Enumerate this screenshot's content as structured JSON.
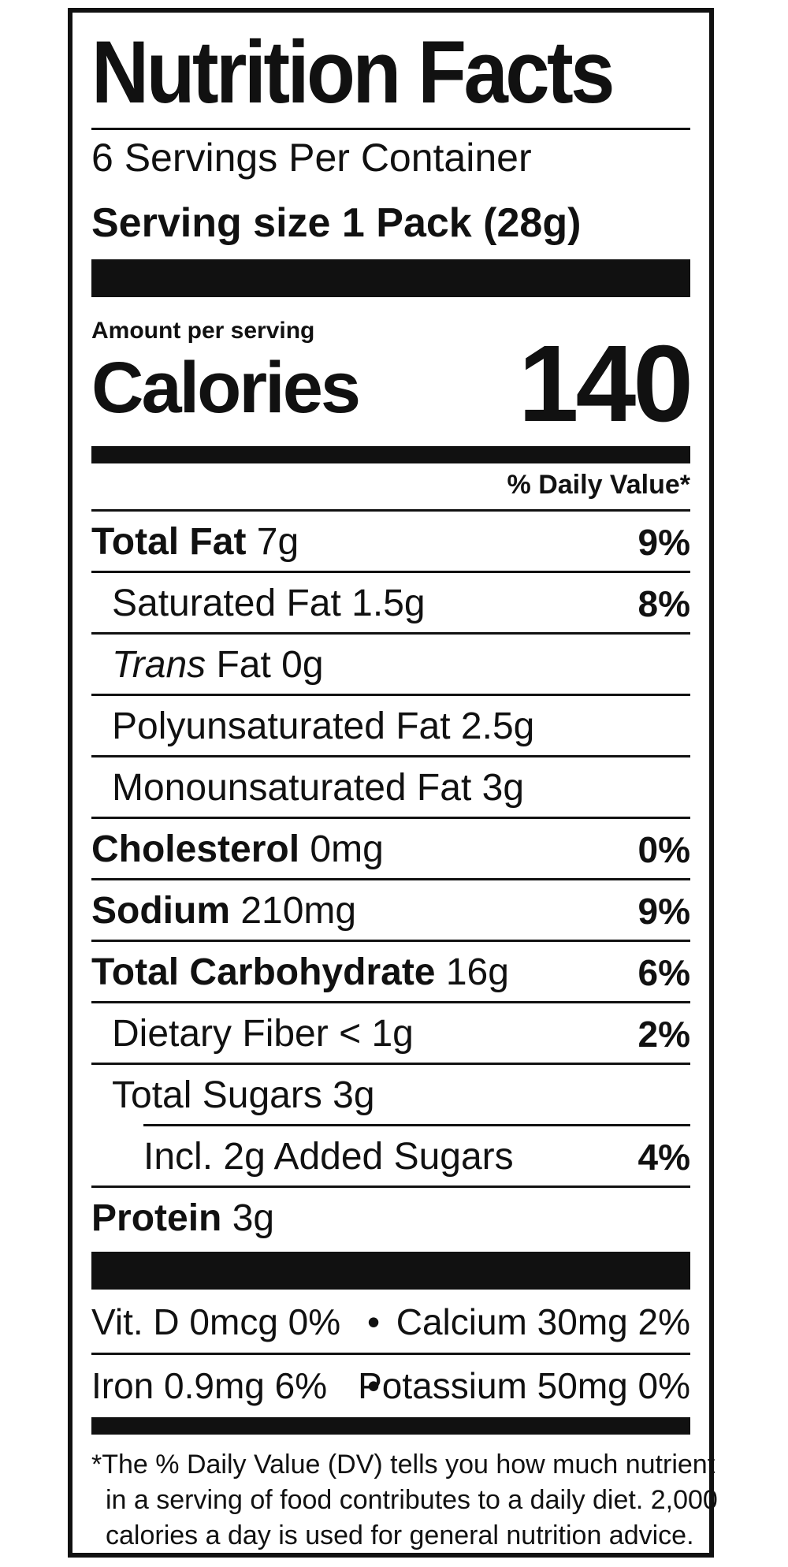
{
  "title": "Nutrition Facts",
  "servings_per_container": "6 Servings Per Container",
  "serving_size": "Serving size 1 Pack (28g)",
  "amount_per_serving": "Amount per serving",
  "calories_label": "Calories",
  "calories_value": "140",
  "daily_value_header": "% Daily Value*",
  "nutrients": [
    {
      "name": "Total Fat",
      "amount": " 7g",
      "dv": "9%"
    },
    {
      "name": "Saturated Fat 1.5g",
      "dv": "8%"
    },
    {
      "name_italic": "Trans",
      "name": " Fat 0g"
    },
    {
      "name": "Polyunsaturated Fat 2.5g"
    },
    {
      "name": "Monounsaturated Fat 3g"
    },
    {
      "name": "Cholesterol",
      "amount": " 0mg",
      "dv": "0%"
    },
    {
      "name": "Sodium",
      "amount": " 210mg",
      "dv": "9%"
    },
    {
      "name": "Total Carbohydrate",
      "amount": " 16g",
      "dv": "6%"
    },
    {
      "name": "Dietary Fiber < 1g",
      "dv": "2%"
    },
    {
      "name": "Total Sugars 3g"
    },
    {
      "name": "Incl. 2g Added Sugars",
      "dv": "4%"
    },
    {
      "name": "Protein",
      "amount": " 3g"
    }
  ],
  "vitamins": [
    {
      "left": "Vit. D 0mcg 0%",
      "bullet": "•",
      "right": "Calcium 30mg 2%"
    },
    {
      "left": "Iron 0.9mg 6%",
      "bullet": "•",
      "right": "Potassium 50mg 0%"
    }
  ],
  "footnote": [
    "*The % Daily Value (DV) tells you how much nutrient",
    "in a serving of food contributes to a daily diet. 2,000",
    "calories a day is used for general nutrition advice."
  ]
}
